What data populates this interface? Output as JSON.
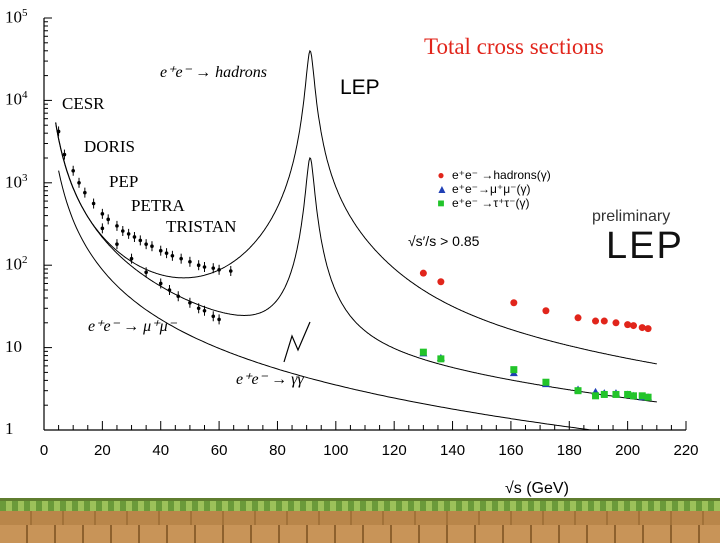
{
  "chart_data": {
    "type": "scatter",
    "title": "Total  cross  sections",
    "xlabel": "√s (GeV)",
    "ylabel": "",
    "xlim": [
      0,
      220
    ],
    "ylim": [
      1,
      100000
    ],
    "yscale": "log",
    "x_ticks": [
      "0",
      "20",
      "40",
      "60",
      "80",
      "100",
      "120",
      "140",
      "160",
      "180",
      "200",
      "220"
    ],
    "y_ticks": [
      {
        "value": 100000,
        "base": "10",
        "exp": "5"
      },
      {
        "value": 10000,
        "base": "10",
        "exp": "4"
      },
      {
        "value": 1000,
        "base": "10",
        "exp": "3"
      },
      {
        "value": 100,
        "base": "10",
        "exp": "2"
      },
      {
        "value": 10,
        "base": "10",
        "exp": ""
      },
      {
        "value": 1,
        "base": "1",
        "exp": ""
      }
    ],
    "experiments": [
      "CESR",
      "DORIS",
      "PEP",
      "PETRA",
      "TRISTAN"
    ],
    "lep_label": "LEP",
    "processes": {
      "hadrons": "e⁺e⁻ → hadrons",
      "mumu": "e⁺e⁻ → μ⁺μ⁻",
      "gammagamma": "e⁺e⁻ → γγ"
    },
    "legend": [
      {
        "label": "e⁺e⁻ →hadrons(γ)",
        "color": "#e1251b",
        "marker": "circle"
      },
      {
        "label": "e⁺e⁻→μ⁺μ⁻(γ)",
        "color": "#1f3fb5",
        "marker": "triangle"
      },
      {
        "label": "e⁺e⁻ →τ⁺τ⁻(γ)",
        "color": "#22c42a",
        "marker": "square"
      }
    ],
    "badge": {
      "preliminary": "preliminary",
      "name": "LEP",
      "cut": "√s′/s > 0.85"
    },
    "series": [
      {
        "name": "hadrons(γ) LEP",
        "color": "#e1251b",
        "marker": "circle",
        "x": [
          130,
          136,
          161,
          172,
          183,
          189,
          192,
          196,
          200,
          202,
          205,
          207
        ],
        "y": [
          80,
          63,
          35,
          28,
          23,
          21,
          21,
          20,
          19,
          18.5,
          17.5,
          17
        ]
      },
      {
        "name": "μ⁺μ⁻(γ) LEP",
        "color": "#1f3fb5",
        "marker": "triangle",
        "x": [
          130,
          136,
          161,
          172,
          183,
          189,
          192,
          196,
          200,
          202,
          205,
          207
        ],
        "y": [
          8.5,
          7.5,
          4.9,
          3.6,
          3.1,
          2.9,
          2.8,
          2.8,
          2.7,
          2.6,
          2.5,
          2.5
        ]
      },
      {
        "name": "τ⁺τ⁻(γ) LEP",
        "color": "#22c42a",
        "marker": "square",
        "x": [
          130,
          136,
          161,
          172,
          183,
          189,
          192,
          196,
          200,
          202,
          205,
          207
        ],
        "y": [
          8.8,
          7.3,
          5.4,
          3.8,
          3.0,
          2.6,
          2.7,
          2.7,
          2.7,
          2.6,
          2.6,
          2.5
        ]
      }
    ],
    "lowE_hadrons": {
      "x": [
        5,
        7,
        10,
        12,
        14,
        17,
        20,
        22,
        25,
        27,
        29,
        31,
        33,
        35,
        37,
        40,
        42,
        44,
        47,
        50,
        53,
        55,
        58,
        60,
        64
      ],
      "y": [
        4200,
        2200,
        1400,
        1000,
        760,
        560,
        420,
        360,
        300,
        260,
        240,
        220,
        200,
        180,
        170,
        150,
        140,
        130,
        120,
        110,
        100,
        95,
        92,
        88,
        85
      ]
    },
    "lowE_mumu": {
      "x": [
        20,
        25,
        30,
        35,
        40,
        43,
        46,
        50,
        53,
        55,
        58,
        60
      ],
      "y": [
        280,
        180,
        120,
        82,
        60,
        50,
        42,
        35,
        30,
        28,
        24,
        22
      ]
    }
  }
}
